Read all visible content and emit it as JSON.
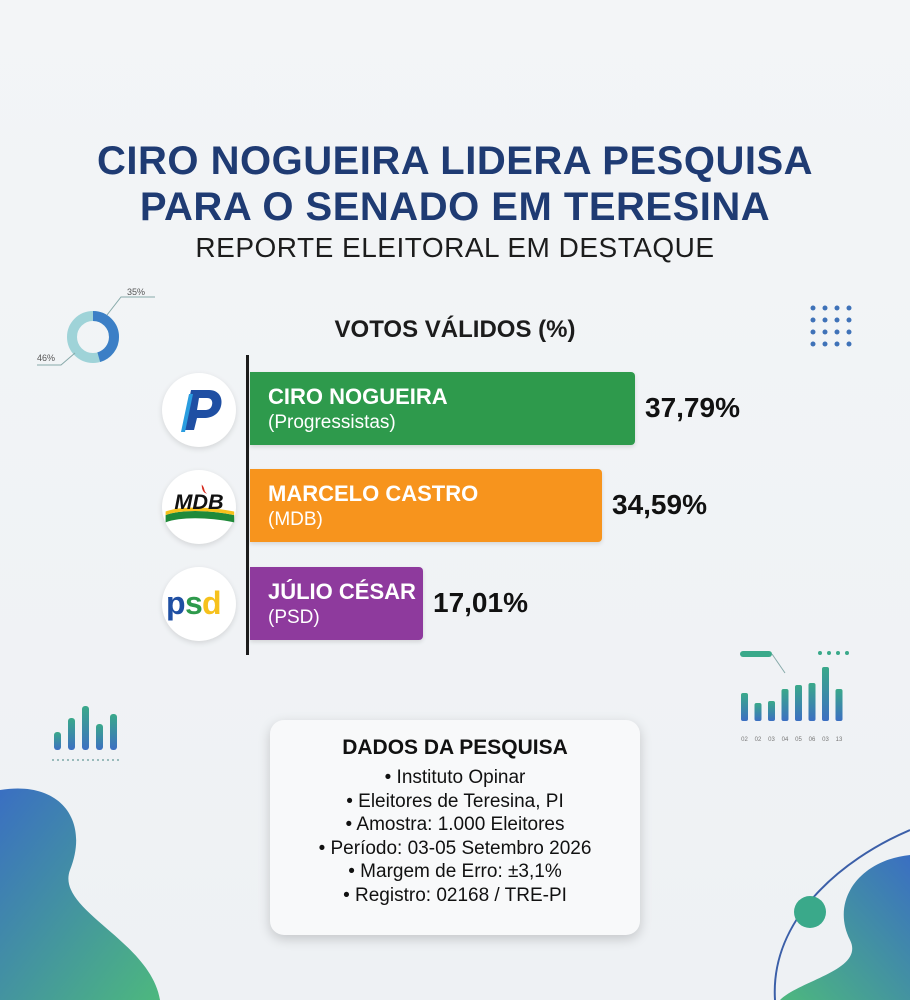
{
  "header": {
    "title_line1": "CIRO NOGUEIRA LIDERA PESQUISA",
    "title_line2": "PARA O SENADO EM TERESINA",
    "subtitle": "REPORTE ELEITORAL EM DESTAQUE"
  },
  "chart_data": {
    "type": "bar",
    "orientation": "horizontal",
    "title": "VOTOS VÁLIDOS (%)",
    "categories": [
      "CIRO NOGUEIRA",
      "MARCELO CASTRO",
      "JÚLIO CÉSAR"
    ],
    "parties": [
      "(Progressistas)",
      "(MDB)",
      "(PSD)"
    ],
    "values": [
      37.79,
      34.59,
      17.01
    ],
    "value_labels": [
      "37,79%",
      "34,59%",
      "17,01%"
    ],
    "colors": [
      "#2e9a4c",
      "#f7941d",
      "#8e3a9d"
    ],
    "xlim": [
      0,
      40
    ],
    "grid": false
  },
  "logos": {
    "pp": {
      "icon": "progressistas-logo",
      "text": "P"
    },
    "mdb": {
      "icon": "mdb-logo",
      "text": "MDB"
    },
    "psd": {
      "icon": "psd-logo",
      "text": "psd"
    }
  },
  "info": {
    "title": "DADOS DA PESQUISA",
    "items": [
      "• Instituto Opinar",
      "• Eleitores de Teresina, PI",
      "• Amostra: 1.000 Eleitores",
      "• Período: 03-05 Setembro 2026",
      "• Margem de Erro: ±3,1%",
      "• Registro: 02168 / TRE-PI"
    ]
  },
  "decorations": {
    "donut_labels": [
      "35%",
      "46%"
    ],
    "mini_chart_ticks": [
      "02",
      "02",
      "03",
      "04",
      "05",
      "06",
      "03",
      "13"
    ]
  }
}
